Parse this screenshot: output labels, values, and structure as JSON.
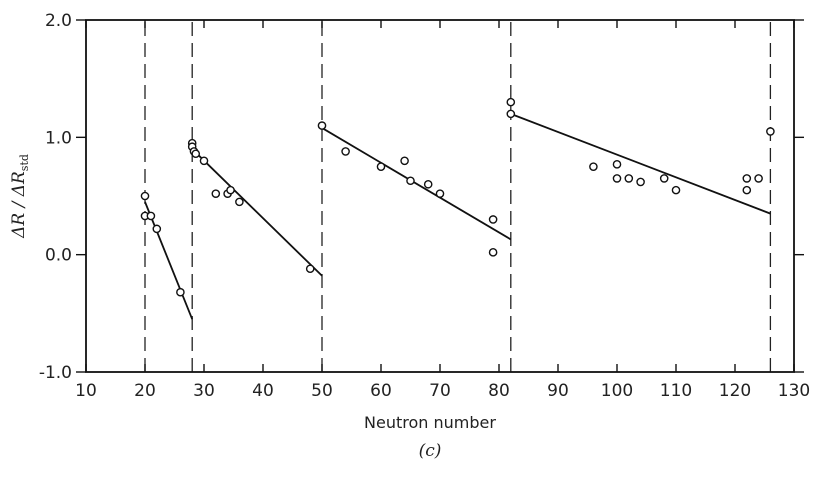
{
  "chart_data": {
    "type": "scatter",
    "xlabel": "Neutron number",
    "ylabel": "ΔR / ΔR",
    "ylabel_subscript": "std",
    "panel_label": "(c)",
    "xlim": [
      10,
      130
    ],
    "ylim": [
      -1.0,
      2.0
    ],
    "x_ticks": [
      "10",
      "20",
      "30",
      "40",
      "50",
      "60",
      "70",
      "80",
      "90",
      "100",
      "110",
      "120",
      "130"
    ],
    "y_ticks": [
      "-1.0",
      "0.0",
      "1.0",
      "2.0"
    ],
    "magic_numbers": [
      20,
      28,
      50,
      82,
      126
    ],
    "points": [
      [
        20,
        0.5
      ],
      [
        20,
        0.33
      ],
      [
        21,
        0.33
      ],
      [
        22,
        0.22
      ],
      [
        26,
        -0.32
      ],
      [
        28,
        0.95
      ],
      [
        28,
        0.92
      ],
      [
        28.3,
        0.88
      ],
      [
        28.6,
        0.86
      ],
      [
        30,
        0.8
      ],
      [
        32,
        0.52
      ],
      [
        34,
        0.52
      ],
      [
        34.5,
        0.55
      ],
      [
        36,
        0.45
      ],
      [
        48,
        -0.12
      ],
      [
        50,
        1.1
      ],
      [
        54,
        0.88
      ],
      [
        60,
        0.75
      ],
      [
        64,
        0.8
      ],
      [
        65,
        0.63
      ],
      [
        68,
        0.6
      ],
      [
        70,
        0.52
      ],
      [
        79,
        0.3
      ],
      [
        79,
        0.02
      ],
      [
        82,
        1.3
      ],
      [
        82,
        1.2
      ],
      [
        96,
        0.75
      ],
      [
        100,
        0.77
      ],
      [
        100,
        0.65
      ],
      [
        102,
        0.65
      ],
      [
        104,
        0.62
      ],
      [
        108,
        0.65
      ],
      [
        110,
        0.55
      ],
      [
        122,
        0.65
      ],
      [
        122,
        0.55
      ],
      [
        124,
        0.65
      ],
      [
        126,
        1.05
      ]
    ],
    "fit_lines": [
      {
        "x": [
          20,
          28
        ],
        "y": [
          0.45,
          -0.55
        ]
      },
      {
        "x": [
          28,
          50
        ],
        "y": [
          0.9,
          -0.18
        ]
      },
      {
        "x": [
          50,
          82
        ],
        "y": [
          1.08,
          0.13
        ]
      },
      {
        "x": [
          82,
          126
        ],
        "y": [
          1.2,
          0.35
        ]
      }
    ],
    "grid": false
  }
}
